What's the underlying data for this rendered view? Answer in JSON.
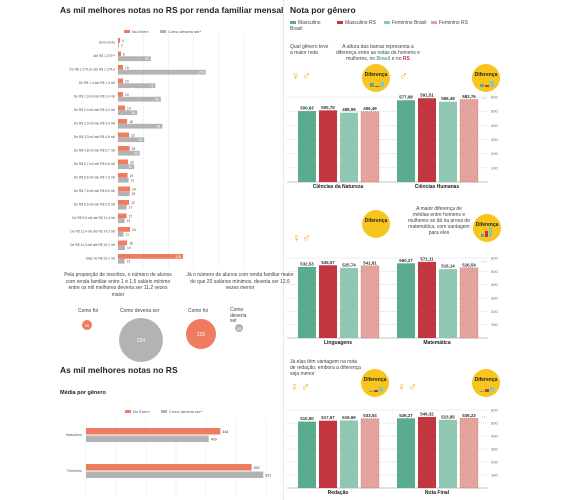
{
  "left": {
    "title": "As mil melhores notas no RS por renda familiar mensal",
    "legend": {
      "no_enem": "No Enem",
      "como_deveria_ser": "Como deveria ser*"
    },
    "colors": {
      "no_enem": "#ef7c61",
      "deveria": "#b3b3b3",
      "grid": "#e2e2e2"
    },
    "chart_data": {
      "type": "bar",
      "categories": [
        "Sem renda",
        "Até R$ 1.274**",
        "De R$ 1.274,01 até R$ 1.274,6",
        "De R$ 1.4 até R$ 1,3 mil",
        "De R$ 1,9 mil até R$ 2,4 mil",
        "De R$ 2,4 mil até R$ 3,2 mil",
        "De R$ 2,9 mil até R$ 3,9 mil",
        "De R$ 3,3 mil até R$ 4,8 mil",
        "De R$ 4,8 mil até R$ 5,7 mil",
        "De R$ 5,7 mil até R$ 6,6 mil",
        "De R$ 6,6 mil até R$ 7,6 mil",
        "De R$ 7,6 mil até R$ 8,6 mil",
        "De R$ 8,6 mil até R$ 9,5 mil",
        "De R$ 9,5 mil até R$ 11,4 mil",
        "De R$ 11,4 mil até R$ 14,3 mil",
        "De R$ 14,3 mil até R$ 19,1 mil",
        "Mais de R$ 19,1 mil"
      ],
      "series": [
        {
          "name": "No Enem",
          "values": [
            4,
            6,
            10,
            10,
            10,
            14,
            18,
            22,
            23,
            20,
            19,
            24,
            22,
            17,
            24,
            18,
            129
          ]
        },
        {
          "name": "Como deveria ser*",
          "values": [
            2,
            65,
            174,
            74,
            85,
            38,
            88,
            52,
            43,
            32,
            21,
            23,
            17,
            13,
            11,
            14,
            13
          ]
        }
      ],
      "value_labels_enem": [
        "4",
        "6",
        "10",
        "10",
        "10",
        "14",
        "18",
        "22",
        "23",
        "20",
        "19",
        "24",
        "22",
        "17",
        "24",
        "18",
        "129"
      ],
      "value_labels_dev": [
        "2",
        "65",
        "174",
        "74",
        "85",
        "38",
        "88",
        "52",
        "43",
        "32",
        "21",
        "23",
        "17",
        "13",
        "11",
        "14",
        "13"
      ],
      "xticks": [
        "0",
        "50",
        "100",
        "150",
        "200",
        "250"
      ],
      "xlim": [
        0,
        250
      ]
    },
    "note_a": "Pela proporção de inscritos, o número de alunos com renda familiar entre 1 e 1,5 salário mínimo entre os mil melhores deveria ser 11,2 vezes maior",
    "note_b": "Já o número de alunos com renda familiar maior do que 20 salários mínimos, deveria ser 12,6 vezes menor",
    "bubbles": [
      {
        "label": "Como foi",
        "value": "20"
      },
      {
        "label": "Como deveria ser",
        "value": "224"
      },
      {
        "label": "Como foi",
        "value": "120"
      },
      {
        "label": "Como deveria ser",
        "value": "10"
      }
    ],
    "section2_title": "As mil melhores notas no RS",
    "section2_sub": "Média por gênero",
    "chart2_data": {
      "type": "bar",
      "categories": [
        "Masculino",
        "Feminino"
      ],
      "series": [
        {
          "name": "No Enem",
          "values": [
            448,
            552
          ]
        },
        {
          "name": "Como deveria ser*",
          "values": [
            409,
            591
          ]
        }
      ],
      "labels_enem": [
        "448",
        "552"
      ],
      "labels_dev": [
        "409",
        "591"
      ],
      "xticks": [
        "0",
        "100",
        "200",
        "300",
        "400",
        "500",
        "600"
      ],
      "xlim": [
        0,
        600
      ]
    }
  },
  "right": {
    "title": "Nota por gênero",
    "legend": [
      {
        "label": "Masculino Brasil",
        "color": "#5aac8f"
      },
      {
        "label": "Masculino RS",
        "color": "#c2373f"
      },
      {
        "label": "Feminino Brasil",
        "color": "#8fc7b3"
      },
      {
        "label": "Feminino RS",
        "color": "#e3a49e"
      }
    ],
    "badge": "Diferença",
    "ann_q": "Qual gênero teve a maior nota",
    "ann_h": "A altura das barras representa a diferença entre as notas de homens e mulheres, no",
    "ann_h_brasil": "Brasil",
    "ann_h_e": "e no",
    "ann_h_rs": "RS",
    "ann_mat": "A maior diferença de médias entre homens e mulheres se dá na prova de matemática, com vantagem para eles",
    "ann_red": "Já elas têm vantagem na nota de redação, embora a diferença seja menor",
    "yticks": [
      "600",
      "500",
      "400",
      "300",
      "200",
      "100"
    ],
    "chart_data": [
      {
        "type": "bar",
        "categories": [
          "Ciências da Natureza",
          "Ciências Humanas"
        ],
        "values": [
          [
            500.63,
            505.75,
            488.99,
            496.49
          ],
          [
            577.08,
            591.51,
            566.48,
            582.76
          ]
        ],
        "labels": [
          [
            "500,63",
            "505,75",
            "488,99",
            "496,49"
          ],
          [
            "577,08",
            "591,51",
            "566,48",
            "582,76"
          ]
        ],
        "ylim": [
          0,
          600
        ]
      },
      {
        "type": "bar",
        "categories": [
          "Linguagens",
          "Matemática"
        ],
        "values": [
          [
            532.53,
            545.57,
            525.74,
            541.81
          ],
          [
            560.27,
            571.11,
            516.14,
            526.54
          ]
        ],
        "labels": [
          [
            "532,53",
            "545,57",
            "525,74",
            "541,81"
          ],
          [
            "560,27",
            "571,11",
            "516,14",
            "526,54"
          ]
        ],
        "ylim": [
          0,
          600
        ]
      },
      {
        "type": "bar",
        "categories": [
          "Redação",
          "Nota Final"
        ],
        "values": [
          [
            510.8,
            517.67,
            519.69,
            533.54
          ],
          [
            536.27,
            546.32,
            523.85,
            536.23
          ]
        ],
        "labels": [
          [
            "510,80",
            "517,67",
            "519,69",
            "533,54"
          ],
          [
            "536,27",
            "546,32",
            "523,85",
            "536,23"
          ]
        ],
        "ylim": [
          0,
          600
        ]
      }
    ]
  }
}
